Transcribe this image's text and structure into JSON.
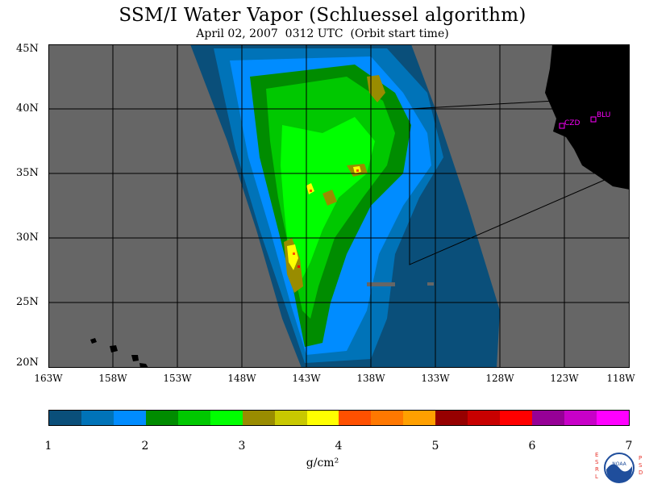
{
  "title": "SSM/I Water Vapor (Schluessel algorithm)",
  "subtitle": "April 02, 2007  0312 UTC  (Orbit start time)",
  "map": {
    "lat_labels": [
      "45N",
      "40N",
      "35N",
      "30N",
      "25N",
      "20N"
    ],
    "lon_labels": [
      "163W",
      "158W",
      "153W",
      "148W",
      "143W",
      "138W",
      "133W",
      "128W",
      "123W",
      "118W"
    ],
    "stations": [
      {
        "code": "CZD"
      },
      {
        "code": "BLU"
      }
    ],
    "land_color": "#000000",
    "nodata_color": "#666666",
    "grid": "on"
  },
  "colorbar": {
    "colors": [
      "#0a4f7a",
      "#0073b8",
      "#008cff",
      "#008c00",
      "#00c800",
      "#00ff00",
      "#998c00",
      "#c8c800",
      "#ffff00",
      "#ff5000",
      "#ff7800",
      "#ffa000",
      "#960000",
      "#c80000",
      "#ff0000",
      "#960096",
      "#c800c8",
      "#ff00ff"
    ],
    "ticks": [
      "1",
      "2",
      "3",
      "4",
      "5",
      "6",
      "7"
    ],
    "unit": "g/cm²"
  },
  "logo": {
    "left_letters": [
      "E",
      "S",
      "R",
      "L"
    ],
    "right_letters": [
      "P",
      "S",
      "D"
    ],
    "text": "NOAA"
  }
}
